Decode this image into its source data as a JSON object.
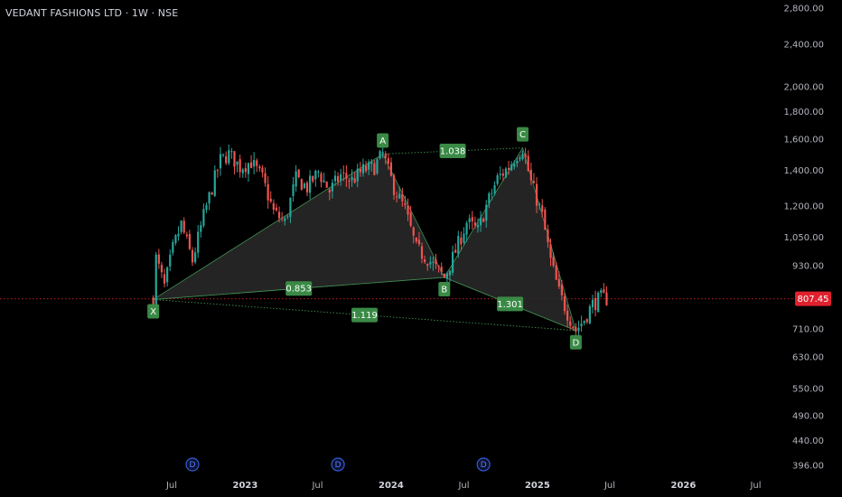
{
  "title": "VEDANT FASHIONS LTD · 1W · NSE",
  "colors": {
    "background": "#000000",
    "up_candle": "#26a69a",
    "down_candle": "#ef5350",
    "pattern_fill": "#2a2a2a",
    "pattern_line": "#3f8f53",
    "label_bg": "#3a8a46",
    "price_label_bg": "#e0202d",
    "dividend_marker": "#2f5bd6"
  },
  "chart_data": {
    "type": "candlestick",
    "scale": "log",
    "y_ticks": [
      "2,800.00",
      "2,400.00",
      "2,000.00",
      "1,800.00",
      "1,600.00",
      "1,400.00",
      "1,200.00",
      "1,050.00",
      "930.00",
      "807.45",
      "710.00",
      "630.00",
      "550.00",
      "490.00",
      "440.00",
      "396.00"
    ],
    "y_tick_values": [
      2800,
      2400,
      2000,
      1800,
      1600,
      1400,
      1200,
      1050,
      930,
      710,
      630,
      550,
      490,
      440,
      396
    ],
    "x_ticks": [
      "Jul",
      "2023",
      "Jul",
      "2024",
      "Jul",
      "2025",
      "Jul",
      "2026",
      "Jul"
    ],
    "x_tick_dates": [
      "2022-07-01",
      "2023-01-01",
      "2023-07-01",
      "2024-01-01",
      "2024-07-01",
      "2025-01-01",
      "2025-07-01",
      "2026-01-01",
      "2026-07-01"
    ],
    "current_price": "807.45",
    "current_price_value": 807.45,
    "pattern": {
      "points": [
        {
          "label": "X",
          "date": "2022-05-16",
          "price": 805
        },
        {
          "label": "A",
          "date": "2023-12-11",
          "price": 1500
        },
        {
          "label": "B",
          "date": "2024-05-13",
          "price": 885
        },
        {
          "label": "C",
          "date": "2024-11-25",
          "price": 1540
        },
        {
          "label": "D",
          "date": "2025-04-07",
          "price": 705
        }
      ],
      "ratios": [
        {
          "label": "0.853",
          "from": "X",
          "to": "B"
        },
        {
          "label": "1.038",
          "from": "A",
          "to": "C"
        },
        {
          "label": "1.301",
          "from": "B",
          "to": "D"
        },
        {
          "label": "1.119",
          "from": "X",
          "to": "D"
        }
      ]
    },
    "dividends": [
      {
        "label": "D",
        "date": "2022-08-22"
      },
      {
        "label": "D",
        "date": "2023-08-21"
      },
      {
        "label": "D",
        "date": "2024-08-19"
      }
    ],
    "price_path": [
      [
        "2022-05-16",
        805
      ],
      [
        "2022-05-23",
        960
      ],
      [
        "2022-06-13",
        850
      ],
      [
        "2022-07-04",
        1000
      ],
      [
        "2022-07-25",
        1110
      ],
      [
        "2022-08-22",
        950
      ],
      [
        "2022-09-19",
        1150
      ],
      [
        "2022-10-10",
        1300
      ],
      [
        "2022-10-31",
        1460
      ],
      [
        "2022-11-21",
        1500
      ],
      [
        "2022-12-19",
        1420
      ],
      [
        "2023-01-16",
        1450
      ],
      [
        "2023-02-13",
        1350
      ],
      [
        "2023-03-13",
        1170
      ],
      [
        "2023-04-10",
        1120
      ],
      [
        "2023-05-08",
        1350
      ],
      [
        "2023-06-05",
        1300
      ],
      [
        "2023-07-03",
        1390
      ],
      [
        "2023-07-31",
        1280
      ],
      [
        "2023-08-28",
        1370
      ],
      [
        "2023-09-25",
        1340
      ],
      [
        "2023-10-23",
        1400
      ],
      [
        "2023-11-20",
        1420
      ],
      [
        "2023-12-11",
        1500
      ],
      [
        "2024-01-08",
        1300
      ],
      [
        "2024-02-05",
        1180
      ],
      [
        "2024-03-04",
        1000
      ],
      [
        "2024-04-01",
        960
      ],
      [
        "2024-04-22",
        920
      ],
      [
        "2024-05-13",
        885
      ],
      [
        "2024-06-10",
        990
      ],
      [
        "2024-07-08",
        1120
      ],
      [
        "2024-08-05",
        1080
      ],
      [
        "2024-08-26",
        1200
      ],
      [
        "2024-09-23",
        1350
      ],
      [
        "2024-10-21",
        1420
      ],
      [
        "2024-11-11",
        1500
      ],
      [
        "2024-11-25",
        1540
      ],
      [
        "2024-12-16",
        1330
      ],
      [
        "2025-01-13",
        1150
      ],
      [
        "2025-02-03",
        950
      ],
      [
        "2025-02-24",
        830
      ],
      [
        "2025-03-17",
        760
      ],
      [
        "2025-04-07",
        705
      ],
      [
        "2025-04-28",
        740
      ],
      [
        "2025-05-19",
        790
      ],
      [
        "2025-06-09",
        810
      ],
      [
        "2025-06-23",
        807.45
      ]
    ]
  }
}
